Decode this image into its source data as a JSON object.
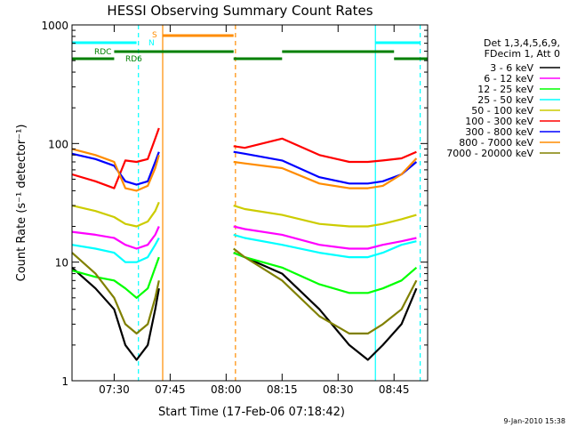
{
  "chart_data": {
    "type": "line",
    "title": "HESSI Observing Summary Count Rates",
    "xlabel": "Start Time (17-Feb-06 07:18:42)",
    "ylabel": "Count Rate (s⁻¹ detector⁻¹)",
    "y_scale": "log",
    "ylim": [
      1,
      1000
    ],
    "xlim": [
      "07:18:42",
      "08:54:00"
    ],
    "grid": false,
    "legend_position": "right",
    "x_ticks": [
      "07:30",
      "07:45",
      "08:00",
      "08:15",
      "08:30",
      "08:45"
    ],
    "y_ticks": [
      "1",
      "10",
      "100",
      "1000"
    ],
    "legend_header": [
      "Det 1,3,4,5,6,9,",
      "FDecim 1, Att 0"
    ],
    "series": [
      {
        "name": "3 - 6 keV",
        "color": "#000000",
        "x": [
          "07:18:42",
          "07:25",
          "07:30",
          "07:33",
          "07:36",
          "07:39",
          "07:41",
          "07:42",
          "08:02",
          "08:05",
          "08:15",
          "08:25",
          "08:33",
          "08:38",
          "08:42",
          "08:47",
          "08:51"
        ],
        "y": [
          9,
          6,
          4,
          2,
          1.5,
          2,
          4,
          6,
          12,
          11,
          8,
          4,
          2,
          1.5,
          2,
          3,
          6
        ]
      },
      {
        "name": "6 - 12 keV",
        "color": "#ff00ff",
        "x": [
          "07:18:42",
          "07:25",
          "07:30",
          "07:33",
          "07:36",
          "07:39",
          "07:41",
          "07:42",
          "08:02",
          "08:05",
          "08:15",
          "08:25",
          "08:33",
          "08:38",
          "08:42",
          "08:47",
          "08:51"
        ],
        "y": [
          18,
          17,
          16,
          14,
          13,
          14,
          17,
          20,
          20,
          19,
          17,
          14,
          13,
          13,
          14,
          15,
          16
        ]
      },
      {
        "name": "12 - 25 keV",
        "color": "#00ff00",
        "x": [
          "07:18:42",
          "07:25",
          "07:30",
          "07:33",
          "07:36",
          "07:39",
          "07:41",
          "07:42",
          "08:02",
          "08:05",
          "08:15",
          "08:25",
          "08:33",
          "08:38",
          "08:42",
          "08:47",
          "08:51"
        ],
        "y": [
          8.5,
          7.5,
          7,
          6,
          5,
          6,
          9,
          11,
          12,
          11,
          9,
          6.5,
          5.5,
          5.5,
          6,
          7,
          9
        ]
      },
      {
        "name": "25 - 50 keV",
        "color": "#00ffff",
        "x": [
          "07:18:42",
          "07:25",
          "07:30",
          "07:33",
          "07:36",
          "07:39",
          "07:41",
          "07:42",
          "08:02",
          "08:05",
          "08:15",
          "08:25",
          "08:33",
          "08:38",
          "08:42",
          "08:47",
          "08:51"
        ],
        "y": [
          14,
          13,
          12,
          10,
          10,
          11,
          14,
          16,
          17,
          16,
          14,
          12,
          11,
          11,
          12,
          14,
          15
        ]
      },
      {
        "name": "50 - 100 keV",
        "color": "#cccc00",
        "x": [
          "07:18:42",
          "07:25",
          "07:30",
          "07:33",
          "07:36",
          "07:39",
          "07:41",
          "07:42",
          "08:02",
          "08:05",
          "08:15",
          "08:25",
          "08:33",
          "08:38",
          "08:42",
          "08:47",
          "08:51"
        ],
        "y": [
          30,
          27,
          24,
          21,
          20,
          22,
          27,
          32,
          30,
          28,
          25,
          21,
          20,
          20,
          21,
          23,
          25
        ]
      },
      {
        "name": "100 - 300 keV",
        "color": "#ff0000",
        "x": [
          "07:18:42",
          "07:25",
          "07:30",
          "07:33",
          "07:36",
          "07:39",
          "07:41",
          "07:42",
          "08:02",
          "08:05",
          "08:15",
          "08:25",
          "08:33",
          "08:38",
          "08:42",
          "08:47",
          "08:51"
        ],
        "y": [
          55,
          48,
          42,
          72,
          70,
          74,
          110,
          135,
          95,
          92,
          110,
          80,
          70,
          70,
          72,
          75,
          85
        ]
      },
      {
        "name": "300 - 800 keV",
        "color": "#0000ff",
        "x": [
          "07:18:42",
          "07:25",
          "07:30",
          "07:33",
          "07:36",
          "07:39",
          "07:41",
          "07:42",
          "08:02",
          "08:05",
          "08:15",
          "08:25",
          "08:33",
          "08:38",
          "08:42",
          "08:47",
          "08:51"
        ],
        "y": [
          82,
          74,
          65,
          48,
          45,
          48,
          70,
          85,
          85,
          82,
          72,
          52,
          46,
          46,
          48,
          55,
          70
        ]
      },
      {
        "name": "800 - 7000 keV",
        "color": "#ff8c00",
        "x": [
          "07:18:42",
          "07:25",
          "07:30",
          "07:33",
          "07:36",
          "07:39",
          "07:41",
          "07:42",
          "08:02",
          "08:05",
          "08:15",
          "08:25",
          "08:33",
          "08:38",
          "08:42",
          "08:47",
          "08:51"
        ],
        "y": [
          90,
          80,
          70,
          42,
          40,
          44,
          62,
          80,
          70,
          68,
          62,
          46,
          42,
          42,
          44,
          55,
          75
        ]
      },
      {
        "name": "7000 - 20000 keV",
        "color": "#808000",
        "x": [
          "07:18:42",
          "07:25",
          "07:30",
          "07:33",
          "07:36",
          "07:39",
          "07:41",
          "07:42",
          "08:02",
          "08:05",
          "08:15",
          "08:25",
          "08:33",
          "08:38",
          "08:42",
          "08:47",
          "08:51"
        ],
        "y": [
          12,
          8,
          5,
          3,
          2.5,
          3,
          5,
          7,
          13,
          11,
          7,
          3.5,
          2.5,
          2.5,
          3,
          4,
          7
        ]
      }
    ],
    "state_flags": {
      "labels": [
        "S",
        "N",
        "RDC",
        "RD6"
      ],
      "saa": {
        "label": "S",
        "color": "#ff8c00",
        "x": [
          [
            "07:43:00",
            "08:02:00"
          ]
        ]
      },
      "night": {
        "label": "N",
        "color": "#00ffff",
        "x": [
          [
            "07:18:42",
            "07:36:00"
          ],
          [
            "08:40:00",
            "08:52:00"
          ]
        ]
      },
      "rdc": {
        "label": "RDC",
        "color": "#008000",
        "x": [
          [
            "07:18:42",
            "07:30:00"
          ]
        ]
      },
      "rd6": {
        "label": "RD6",
        "color": "#008000",
        "x": [
          [
            "07:30:00",
            "08:02:00"
          ],
          [
            "08:02:00",
            "08:15:00"
          ],
          [
            "08:15:00",
            "08:45:00"
          ],
          [
            "08:45:00",
            "08:54:00"
          ]
        ]
      }
    },
    "vertical_markers": [
      {
        "x": "07:36:30",
        "color": "#00ffff",
        "style": "dashed"
      },
      {
        "x": "07:43:00",
        "color": "#ff8c00",
        "style": "solid"
      },
      {
        "x": "08:02:30",
        "color": "#ff8c00",
        "style": "dashed"
      },
      {
        "x": "08:40:00",
        "color": "#00ffff",
        "style": "solid"
      },
      {
        "x": "08:52:00",
        "color": "#00ffff",
        "style": "dashed"
      }
    ],
    "footer_date": "9-Jan-2010 15:38"
  }
}
